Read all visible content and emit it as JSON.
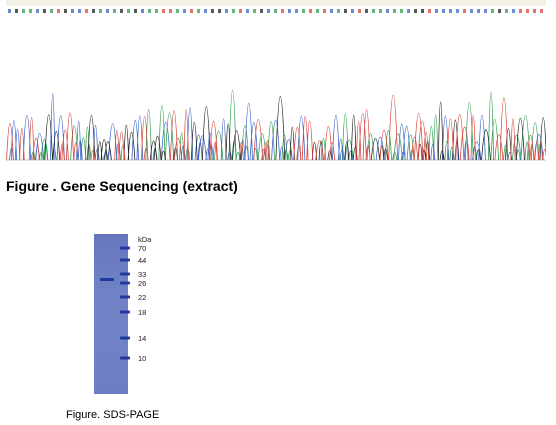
{
  "sequencing": {
    "caption": "Figure . Gene Sequencing (extract)",
    "base_colors": {
      "A": "#2e9e4f",
      "C": "#3a64c8",
      "G": "#222222",
      "T": "#d8453c"
    }
  },
  "gel": {
    "caption": "Figure. SDS-PAGE",
    "unit_label": "kDa",
    "gel_color": "#6f7fc4",
    "band_color": "#1f3a9e",
    "markers": [
      {
        "kda": "70"
      },
      {
        "kda": "44"
      },
      {
        "kda": "33"
      },
      {
        "kda": "26"
      },
      {
        "kda": "22"
      },
      {
        "kda": "18"
      },
      {
        "kda": "14"
      },
      {
        "kda": "10"
      }
    ]
  }
}
